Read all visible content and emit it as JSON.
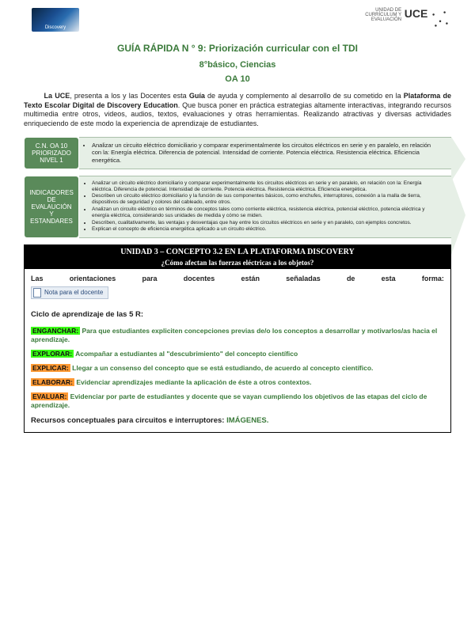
{
  "header": {
    "discovery_label": "Discovery",
    "uce_small": "UNIDAD DE\nCURRÍCULUM Y\nEVALUACIÓN",
    "uce_big": "UCE"
  },
  "titles": {
    "t1": "GUÍA RÁPIDA N ° 9: Priorización curricular con el TDI",
    "t2": "8°básico, Ciencias",
    "t3": "OA 10"
  },
  "intro": {
    "p1a": "La UCE",
    "p1b": ", presenta a los y las Docentes esta ",
    "p1c": "Guía",
    "p1d": " de ayuda y complemento al desarrollo de su cometido en la ",
    "p1e": "Plataforma de Texto Escolar Digital de Discovery Education",
    "p1f": ". Que busca poner en práctica estrategias altamente interactivas, integrando recursos multimedia entre otros, videos, audios, textos, evaluaciones y otras herramientas. Realizando atractivas y diversas actividades enriqueciendo de este modo la experiencia de aprendizaje de estudiantes."
  },
  "arrow1": {
    "label_l1": "C.N. OA 10",
    "label_l2": "PRIORIZADO",
    "label_l3": "NIVEL 1",
    "text": "Analizar un circuito eléctrico domiciliario y comparar experimentalmente los circuitos eléctricos en serie y en paralelo, en relación con la: Energía eléctrica. Diferencia de potencial. Intensidad de corriente. Potencia eléctrica. Resistencia eléctrica. Eficiencia energética."
  },
  "arrow2": {
    "label_l1": "INDICADORES",
    "label_l2": "DE",
    "label_l3": "EVALAUCIÓN",
    "label_l4": "Y",
    "label_l5": "ESTANDARES",
    "items": [
      "Analizar un circuito eléctrico domiciliario y comparar experimentalmente los circuitos eléctricos en serie y en paralelo, en relación con la: Energía eléctrica. Diferencia de potencial. Intensidad de corriente. Potencia eléctrica. Resistencia eléctrica. Eficiencia energética.",
      "Describen un circuito eléctrico domiciliario y la función de sus componentes básicos, como enchufes, interruptores, conexión a la malla de tierra, dispositivos de seguridad y colores del cableado, entre otros.",
      "Analizan un circuito eléctrico en términos de conceptos tales como corriente eléctrica, resistencia eléctrica, potencial eléctrico, potencia eléctrica y energía eléctrica, considerando sus unidades de medida y cómo se miden.",
      "Describen, cualitativamente, las ventajas y desventajas que hay entre los circuitos eléctricos en serie y en paralelo, con ejemplos concretos.",
      "Explican el concepto de eficiencia energética aplicado a un circuito eléctrico."
    ]
  },
  "unit": {
    "header": "UNIDAD 3 – CONCEPTO 3.2   EN LA PLATAFORMA DISCOVERY",
    "sub": "¿Cómo afectan las fuerzas eléctricas a los objetos?",
    "orient_words": [
      "Las",
      "orientaciones",
      "para",
      "docentes",
      "están",
      "señaladas",
      "de",
      "esta",
      "forma:"
    ],
    "note": "Nota para el docente",
    "cycle_h": "Ciclo de aprendizaje de las 5 R:",
    "items": [
      {
        "tag": "ENGANCHAR:",
        "cls": "",
        "text": " Para que estudiantes expliciten concepciones previas de/o los conceptos a desarrollar y motivarlos/as hacia el aprendizaje."
      },
      {
        "tag": "EXPLORAR:",
        "cls": "",
        "text": " Acompañar a estudiantes al \"descubrimiento\" del concepto científico"
      },
      {
        "tag": "EXPLICAR:",
        "cls": "orange",
        "text": " Llegar a un consenso del concepto que se está estudiando, de acuerdo al concepto científico."
      },
      {
        "tag": "ELABORAR:",
        "cls": "orange",
        "text": " Evidenciar aprendizajes mediante la aplicación de éste a otros contextos."
      },
      {
        "tag": "EVALUAR:",
        "cls": "orange",
        "text": " Evidenciar por parte de estudiantes y docente que se vayan cumpliendo los objetivos de las etapas del ciclo de aprendizaje."
      }
    ],
    "resources_a": "Recursos conceptuales para circuitos e interruptores: ",
    "resources_b": "IMÁGENES."
  }
}
